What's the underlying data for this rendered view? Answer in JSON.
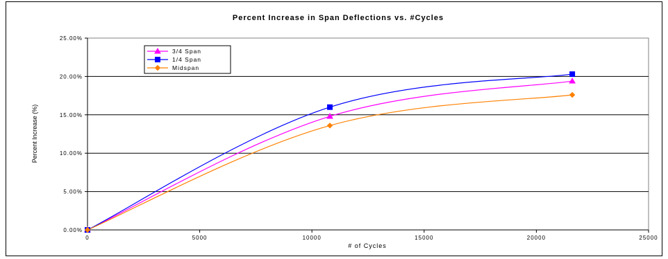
{
  "chart_data": {
    "type": "line",
    "title": "Percent Increase in Span Deflections vs. #Cycles",
    "xlabel": "# of Cycles",
    "ylabel": "Percent Increase (%)",
    "xlim": [
      0,
      25000
    ],
    "ylim": [
      0,
      25
    ],
    "x_ticks": [
      "0",
      "5000",
      "10000",
      "15000",
      "20000",
      "25000"
    ],
    "y_ticks": [
      "0.00%",
      "5.00%",
      "10.00%",
      "15.00%",
      "20.00%",
      "25.00%"
    ],
    "grid": "horizontal",
    "legend_position": "top-left",
    "series": [
      {
        "name": "3/4 Span",
        "color": "#ff00ff",
        "marker": "triangle",
        "x": [
          0,
          10800,
          21600
        ],
        "values": [
          0,
          14.8,
          19.4
        ]
      },
      {
        "name": "1/4 Span",
        "color": "#0000ff",
        "marker": "square",
        "x": [
          0,
          10800,
          21600
        ],
        "values": [
          0,
          16.0,
          20.3
        ]
      },
      {
        "name": "Midspan",
        "color": "#ff8000",
        "marker": "diamond",
        "x": [
          0,
          10800,
          21600
        ],
        "values": [
          0,
          13.6,
          17.6
        ]
      }
    ]
  }
}
